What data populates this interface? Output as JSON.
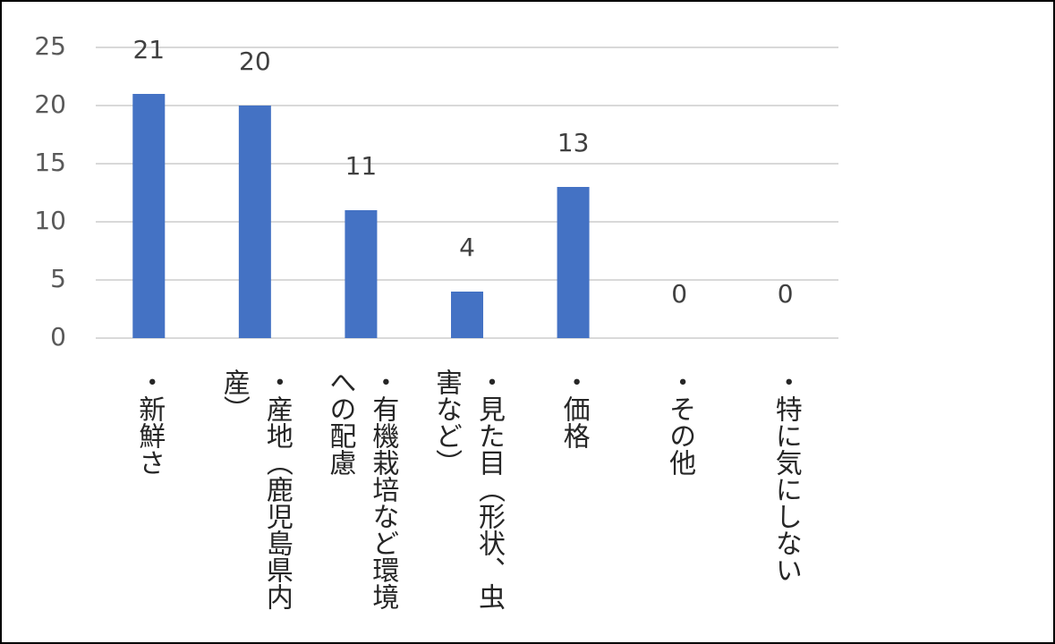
{
  "chart_data": {
    "type": "bar",
    "categories": [
      "・新鮮さ",
      "・産地（鹿児島県内産）",
      "・有機栽培など環境への配慮",
      "・見た目（形状、虫害など）",
      "・価格",
      "・その他",
      "・特に気にしない"
    ],
    "values": [
      21,
      20,
      11,
      4,
      13,
      0,
      0
    ],
    "color": "#4472c4",
    "ylim": [
      0,
      25
    ],
    "yticks": [
      0,
      5,
      10,
      15,
      20,
      25
    ],
    "grid": true
  }
}
